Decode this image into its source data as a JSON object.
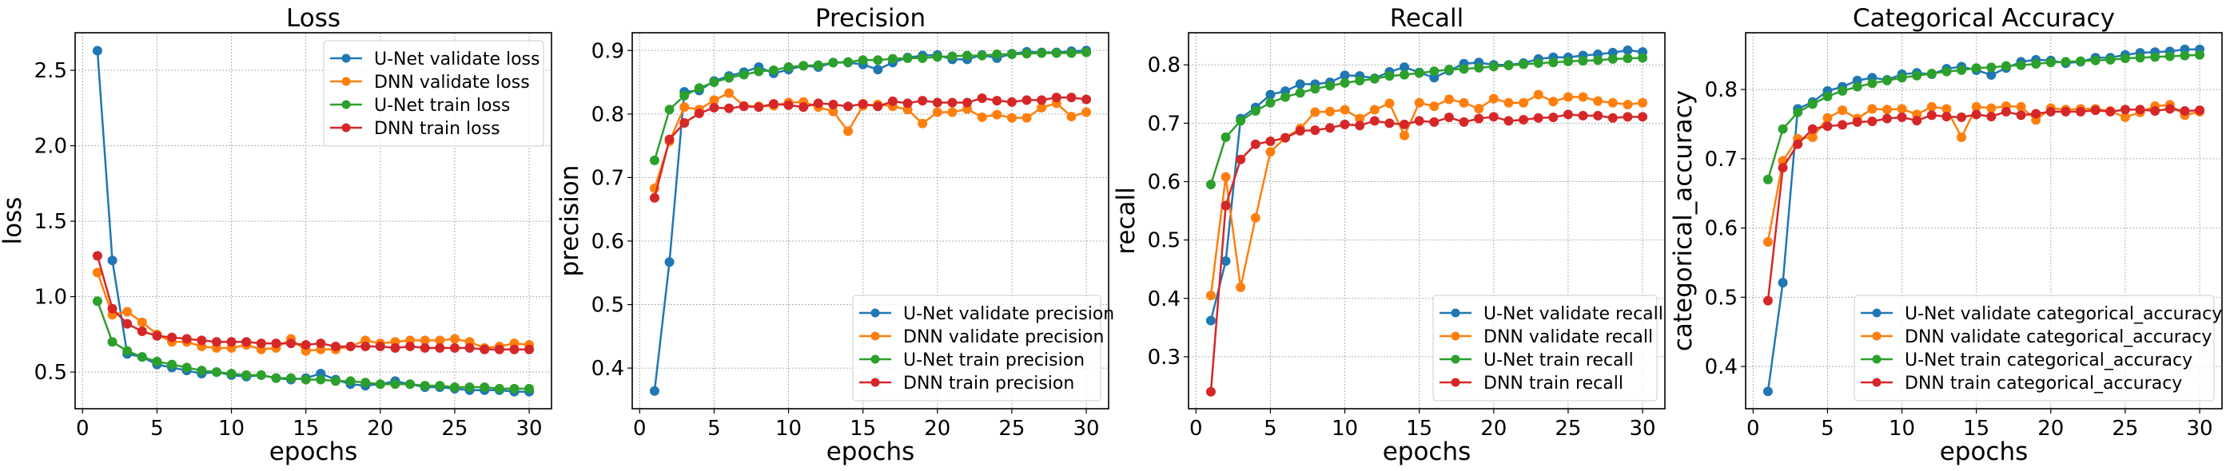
{
  "chart_data": [
    {
      "type": "line",
      "title": "Loss",
      "xlabel": "epochs",
      "ylabel": "loss",
      "xlim": [
        -0.5,
        31.5
      ],
      "ylim": [
        0.257,
        2.749
      ],
      "xticks": [
        0,
        5,
        10,
        15,
        20,
        25,
        30
      ],
      "yticks": [
        0.5,
        1.0,
        1.5,
        2.0,
        2.5
      ],
      "ytick_labels": [
        "0.5",
        "1.0",
        "1.5",
        "2.0",
        "2.5"
      ],
      "grid": true,
      "legend_position": "upper-right",
      "x": [
        1,
        2,
        3,
        4,
        5,
        6,
        7,
        8,
        9,
        10,
        11,
        12,
        13,
        14,
        15,
        16,
        17,
        18,
        19,
        20,
        21,
        22,
        23,
        24,
        25,
        26,
        27,
        28,
        29,
        30
      ],
      "series": [
        {
          "name": "U-Net validate loss",
          "color": "#1f77b4",
          "values": [
            2.63,
            1.24,
            0.62,
            0.6,
            0.55,
            0.53,
            0.51,
            0.49,
            0.5,
            0.48,
            0.47,
            0.48,
            0.46,
            0.45,
            0.46,
            0.49,
            0.45,
            0.42,
            0.41,
            0.42,
            0.44,
            0.42,
            0.4,
            0.4,
            0.39,
            0.38,
            0.38,
            0.38,
            0.37,
            0.37
          ]
        },
        {
          "name": "DNN validate loss",
          "color": "#ff7f0e",
          "values": [
            1.16,
            0.88,
            0.9,
            0.83,
            0.75,
            0.7,
            0.7,
            0.67,
            0.66,
            0.66,
            0.68,
            0.65,
            0.66,
            0.72,
            0.64,
            0.65,
            0.65,
            0.67,
            0.71,
            0.69,
            0.7,
            0.71,
            0.71,
            0.71,
            0.72,
            0.7,
            0.66,
            0.67,
            0.69,
            0.68
          ]
        },
        {
          "name": "U-Net train loss",
          "color": "#2ca02c",
          "values": [
            0.97,
            0.7,
            0.64,
            0.6,
            0.57,
            0.55,
            0.53,
            0.51,
            0.5,
            0.49,
            0.48,
            0.48,
            0.46,
            0.46,
            0.45,
            0.45,
            0.44,
            0.44,
            0.43,
            0.42,
            0.42,
            0.42,
            0.41,
            0.41,
            0.4,
            0.4,
            0.4,
            0.39,
            0.39,
            0.39
          ]
        },
        {
          "name": "DNN train loss",
          "color": "#d62728",
          "values": [
            1.27,
            0.92,
            0.82,
            0.77,
            0.74,
            0.73,
            0.72,
            0.71,
            0.7,
            0.7,
            0.7,
            0.69,
            0.69,
            0.69,
            0.68,
            0.69,
            0.67,
            0.67,
            0.67,
            0.67,
            0.66,
            0.67,
            0.66,
            0.66,
            0.66,
            0.66,
            0.65,
            0.65,
            0.65,
            0.65
          ]
        }
      ]
    },
    {
      "type": "line",
      "title": "Precision",
      "xlabel": "epochs",
      "ylabel": "precision",
      "xlim": [
        -0.5,
        31.5
      ],
      "ylim": [
        0.336,
        0.928
      ],
      "xticks": [
        0,
        5,
        10,
        15,
        20,
        25,
        30
      ],
      "yticks": [
        0.4,
        0.5,
        0.6,
        0.7,
        0.8,
        0.9
      ],
      "ytick_labels": [
        "0.4",
        "0.5",
        "0.6",
        "0.7",
        "0.8",
        "0.9"
      ],
      "grid": true,
      "legend_position": "lower-right",
      "x": [
        1,
        2,
        3,
        4,
        5,
        6,
        7,
        8,
        9,
        10,
        11,
        12,
        13,
        14,
        15,
        16,
        17,
        18,
        19,
        20,
        21,
        22,
        23,
        24,
        25,
        26,
        27,
        28,
        29,
        30
      ],
      "series": [
        {
          "name": "U-Net validate precision",
          "color": "#1f77b4",
          "values": [
            0.364,
            0.567,
            0.835,
            0.837,
            0.852,
            0.86,
            0.866,
            0.874,
            0.864,
            0.87,
            0.876,
            0.874,
            0.881,
            0.881,
            0.878,
            0.87,
            0.881,
            0.889,
            0.892,
            0.893,
            0.886,
            0.886,
            0.893,
            0.888,
            0.895,
            0.898,
            0.897,
            0.897,
            0.899,
            0.9
          ]
        },
        {
          "name": "DNN validate precision",
          "color": "#ff7f0e",
          "values": [
            0.683,
            0.757,
            0.811,
            0.807,
            0.822,
            0.833,
            0.813,
            0.812,
            0.813,
            0.818,
            0.819,
            0.811,
            0.804,
            0.773,
            0.813,
            0.815,
            0.812,
            0.807,
            0.785,
            0.803,
            0.803,
            0.808,
            0.795,
            0.799,
            0.794,
            0.794,
            0.81,
            0.817,
            0.796,
            0.803
          ]
        },
        {
          "name": "U-Net train precision",
          "color": "#2ca02c",
          "values": [
            0.727,
            0.807,
            0.829,
            0.841,
            0.85,
            0.857,
            0.862,
            0.867,
            0.869,
            0.874,
            0.876,
            0.877,
            0.881,
            0.882,
            0.885,
            0.885,
            0.887,
            0.888,
            0.888,
            0.89,
            0.891,
            0.892,
            0.892,
            0.894,
            0.894,
            0.895,
            0.896,
            0.896,
            0.896,
            0.897
          ]
        },
        {
          "name": "DNN train precision",
          "color": "#d62728",
          "values": [
            0.668,
            0.76,
            0.786,
            0.801,
            0.81,
            0.809,
            0.812,
            0.811,
            0.816,
            0.814,
            0.811,
            0.817,
            0.815,
            0.812,
            0.816,
            0.812,
            0.82,
            0.817,
            0.821,
            0.818,
            0.818,
            0.818,
            0.825,
            0.821,
            0.819,
            0.822,
            0.822,
            0.826,
            0.826,
            0.823
          ]
        }
      ]
    },
    {
      "type": "line",
      "title": "Recall",
      "xlabel": "epochs",
      "ylabel": "recall",
      "xlim": [
        -0.5,
        31.5
      ],
      "ylim": [
        0.211,
        0.855
      ],
      "xticks": [
        0,
        5,
        10,
        15,
        20,
        25,
        30
      ],
      "yticks": [
        0.3,
        0.4,
        0.5,
        0.6,
        0.7,
        0.8
      ],
      "ytick_labels": [
        "0.3",
        "0.4",
        "0.5",
        "0.6",
        "0.7",
        "0.8"
      ],
      "grid": true,
      "legend_position": "lower-right",
      "x": [
        1,
        2,
        3,
        4,
        5,
        6,
        7,
        8,
        9,
        10,
        11,
        12,
        13,
        14,
        15,
        16,
        17,
        18,
        19,
        20,
        21,
        22,
        23,
        24,
        25,
        26,
        27,
        28,
        29,
        30
      ],
      "series": [
        {
          "name": "U-Net validate recall",
          "color": "#1f77b4",
          "values": [
            0.362,
            0.464,
            0.708,
            0.727,
            0.749,
            0.755,
            0.767,
            0.767,
            0.77,
            0.782,
            0.781,
            0.777,
            0.788,
            0.796,
            0.787,
            0.778,
            0.79,
            0.802,
            0.804,
            0.8,
            0.8,
            0.803,
            0.81,
            0.813,
            0.813,
            0.816,
            0.818,
            0.821,
            0.825,
            0.822
          ]
        },
        {
          "name": "DNN validate recall",
          "color": "#ff7f0e",
          "values": [
            0.405,
            0.608,
            0.419,
            0.538,
            0.651,
            0.675,
            0.691,
            0.719,
            0.72,
            0.723,
            0.708,
            0.723,
            0.734,
            0.679,
            0.735,
            0.729,
            0.741,
            0.735,
            0.725,
            0.742,
            0.735,
            0.735,
            0.749,
            0.737,
            0.745,
            0.745,
            0.738,
            0.735,
            0.732,
            0.735
          ]
        },
        {
          "name": "U-Net train recall",
          "color": "#2ca02c",
          "values": [
            0.595,
            0.676,
            0.704,
            0.721,
            0.735,
            0.745,
            0.752,
            0.759,
            0.764,
            0.769,
            0.773,
            0.776,
            0.781,
            0.783,
            0.786,
            0.789,
            0.792,
            0.793,
            0.795,
            0.797,
            0.799,
            0.801,
            0.803,
            0.804,
            0.806,
            0.807,
            0.808,
            0.81,
            0.811,
            0.812
          ]
        },
        {
          "name": "DNN train recall",
          "color": "#d62728",
          "values": [
            0.24,
            0.559,
            0.638,
            0.664,
            0.669,
            0.675,
            0.687,
            0.688,
            0.692,
            0.698,
            0.696,
            0.704,
            0.7,
            0.698,
            0.704,
            0.702,
            0.71,
            0.702,
            0.708,
            0.711,
            0.704,
            0.706,
            0.709,
            0.71,
            0.715,
            0.713,
            0.713,
            0.709,
            0.711,
            0.711
          ]
        }
      ]
    },
    {
      "type": "line",
      "title": "Categorical Accuracy",
      "xlabel": "epochs",
      "ylabel": "categorical_accuracy",
      "xlim": [
        -0.5,
        31.5
      ],
      "ylim": [
        0.339,
        0.882
      ],
      "xticks": [
        0,
        5,
        10,
        15,
        20,
        25,
        30
      ],
      "yticks": [
        0.4,
        0.5,
        0.6,
        0.7,
        0.8
      ],
      "ytick_labels": [
        "0.4",
        "0.5",
        "0.6",
        "0.7",
        "0.8"
      ],
      "grid": true,
      "legend_position": "lower-right",
      "x": [
        1,
        2,
        3,
        4,
        5,
        6,
        7,
        8,
        9,
        10,
        11,
        12,
        13,
        14,
        15,
        16,
        17,
        18,
        19,
        20,
        21,
        22,
        23,
        24,
        25,
        26,
        27,
        28,
        29,
        30
      ],
      "series": [
        {
          "name": "U-Net validate categorical_accuracy",
          "color": "#1f77b4",
          "values": [
            0.364,
            0.521,
            0.772,
            0.782,
            0.798,
            0.804,
            0.813,
            0.817,
            0.814,
            0.822,
            0.824,
            0.822,
            0.83,
            0.833,
            0.828,
            0.821,
            0.831,
            0.84,
            0.843,
            0.842,
            0.838,
            0.84,
            0.846,
            0.846,
            0.85,
            0.853,
            0.854,
            0.855,
            0.858,
            0.858
          ]
        },
        {
          "name": "DNN validate categorical_accuracy",
          "color": "#ff7f0e",
          "values": [
            0.58,
            0.697,
            0.729,
            0.731,
            0.759,
            0.77,
            0.758,
            0.772,
            0.771,
            0.772,
            0.764,
            0.775,
            0.772,
            0.731,
            0.775,
            0.773,
            0.776,
            0.775,
            0.756,
            0.773,
            0.771,
            0.772,
            0.772,
            0.769,
            0.76,
            0.767,
            0.776,
            0.778,
            0.763,
            0.768
          ]
        },
        {
          "name": "U-Net train categorical_accuracy",
          "color": "#2ca02c",
          "values": [
            0.67,
            0.743,
            0.767,
            0.779,
            0.79,
            0.798,
            0.804,
            0.809,
            0.813,
            0.817,
            0.82,
            0.823,
            0.826,
            0.828,
            0.831,
            0.832,
            0.834,
            0.835,
            0.837,
            0.839,
            0.84,
            0.841,
            0.842,
            0.843,
            0.845,
            0.846,
            0.847,
            0.848,
            0.849,
            0.85
          ]
        },
        {
          "name": "DNN train categorical_accuracy",
          "color": "#d62728",
          "values": [
            0.495,
            0.687,
            0.721,
            0.743,
            0.747,
            0.749,
            0.753,
            0.754,
            0.758,
            0.76,
            0.755,
            0.763,
            0.761,
            0.76,
            0.764,
            0.761,
            0.768,
            0.763,
            0.765,
            0.768,
            0.768,
            0.768,
            0.77,
            0.768,
            0.771,
            0.771,
            0.769,
            0.772,
            0.769,
            0.77
          ]
        }
      ]
    }
  ]
}
